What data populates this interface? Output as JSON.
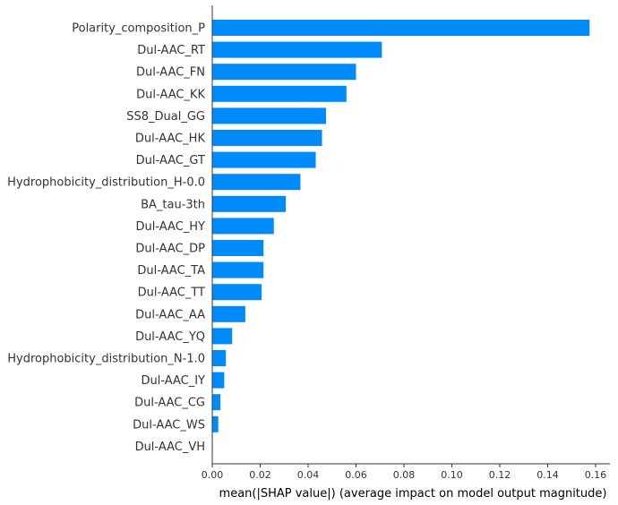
{
  "chart_data": {
    "type": "bar",
    "orientation": "horizontal",
    "title": "",
    "xlabel": "mean(|SHAP value|) (average impact on model output magnitude)",
    "ylabel": "",
    "xlim": [
      0,
      0.166
    ],
    "xticks": [
      0.0,
      0.02,
      0.04,
      0.06,
      0.08,
      0.1,
      0.12,
      0.14,
      0.16
    ],
    "xtick_labels": [
      "0.00",
      "0.02",
      "0.04",
      "0.06",
      "0.08",
      "0.10",
      "0.12",
      "0.14",
      "0.16"
    ],
    "grid": false,
    "legend": false,
    "bar_color": "#008bfb",
    "categories": [
      "Polarity_composition_P",
      "Dul-AAC_RT",
      "Dul-AAC_FN",
      "Dul-AAC_KK",
      "SS8_Dual_GG",
      "Dul-AAC_HK",
      "Dul-AAC_GT",
      "Hydrophobicity_distribution_H-0.0",
      "BA_tau-3th",
      "Dul-AAC_HY",
      "Dul-AAC_DP",
      "Dul-AAC_TA",
      "Dul-AAC_TT",
      "Dul-AAC_AA",
      "Dul-AAC_YQ",
      "Hydrophobicity_distribution_N-1.0",
      "Dul-AAC_IY",
      "Dul-AAC_CG",
      "Dul-AAC_WS",
      "Dul-AAC_VH"
    ],
    "values": [
      0.1575,
      0.0708,
      0.06,
      0.056,
      0.0475,
      0.0458,
      0.0432,
      0.0368,
      0.0307,
      0.0257,
      0.0214,
      0.0214,
      0.0206,
      0.0138,
      0.0083,
      0.0057,
      0.005,
      0.0034,
      0.0025,
      0.0002
    ]
  }
}
